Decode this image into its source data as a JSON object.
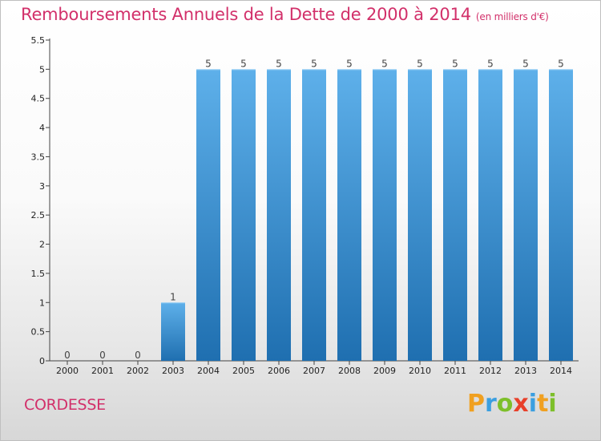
{
  "header": {
    "title": "Remboursements Annuels de la Dette de 2000 à 2014",
    "unit": "(en milliers d'€)"
  },
  "footer": {
    "city": "CORDESSE",
    "logo_letters": [
      "P",
      "r",
      "o",
      "x",
      "i",
      "t",
      "i"
    ],
    "logo_colors": [
      "#f0a020",
      "#3b9fe0",
      "#7dbf2a",
      "#e8402a",
      "#3b9fe0",
      "#f0a020",
      "#7dbf2a"
    ]
  },
  "colors": {
    "title": "#d2306a",
    "bar_light": "#5eb0ea",
    "bar_dark": "#1f6fb0"
  },
  "chart_data": {
    "type": "bar",
    "title": "Remboursements Annuels de la Dette de 2000 à 2014",
    "xlabel": "",
    "ylabel": "",
    "categories": [
      "2000",
      "2001",
      "2002",
      "2003",
      "2004",
      "2005",
      "2006",
      "2007",
      "2008",
      "2009",
      "2010",
      "2011",
      "2012",
      "2013",
      "2014"
    ],
    "values": [
      0,
      0,
      0,
      1,
      5,
      5,
      5,
      5,
      5,
      5,
      5,
      5,
      5,
      5,
      5
    ],
    "data_labels": [
      "0",
      "0",
      "0",
      "1",
      "5",
      "5",
      "5",
      "5",
      "5",
      "5",
      "5",
      "5",
      "5",
      "5",
      "5"
    ],
    "ylim": [
      0,
      5.5
    ],
    "yticks": [
      0,
      0.5,
      1,
      1.5,
      2,
      2.5,
      3,
      3.5,
      4,
      4.5,
      5,
      5.5
    ],
    "ytick_labels": [
      "0",
      "0.5",
      "1",
      "1.5",
      "2",
      "2.5",
      "3",
      "3.5",
      "4",
      "4.5",
      "5",
      "5.5"
    ],
    "grid": false,
    "legend": "none"
  }
}
